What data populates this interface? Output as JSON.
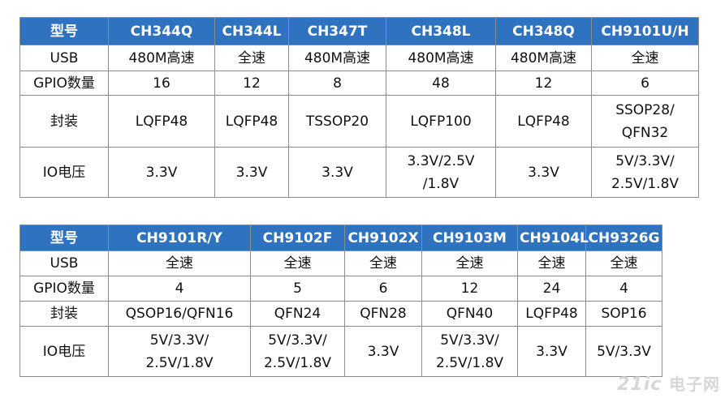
{
  "table1": {
    "header": [
      "型号",
      "CH344Q",
      "CH344L",
      "CH347T",
      "CH348L",
      "CH348Q",
      "CH9101U/H"
    ],
    "rows": [
      [
        "USB",
        "480M高速",
        "全速",
        "480M高速",
        "480M高速",
        "480M高速",
        "全速"
      ],
      [
        "GPIO数量",
        "16",
        "12",
        "8",
        "48",
        "12",
        "6"
      ],
      [
        "封装",
        "LQFP48",
        "LQFP48",
        "TSSOP20",
        "LQFP100",
        "LQFP48",
        "SSOP28/\nQFN32"
      ],
      [
        "IO电压",
        "3.3V",
        "3.3V",
        "3.3V",
        "3.3V/2.5V\n/1.8V",
        "3.3V",
        "5V/3.3V/\n2.5V/1.8V"
      ]
    ]
  },
  "table2": {
    "header": [
      "型号",
      "CH9101R/Y",
      "CH9102F",
      "CH9102X",
      "CH9103M",
      "CH9104L",
      "CH9326G"
    ],
    "rows": [
      [
        "USB",
        "全速",
        "全速",
        "全速",
        "全速",
        "全速",
        "全速"
      ],
      [
        "GPIO数量",
        "4",
        "5",
        "6",
        "12",
        "24",
        "4"
      ],
      [
        "封装",
        "QSOP16/QFN16",
        "QFN24",
        "QFN28",
        "QFN40",
        "LQFP48",
        "SOP16"
      ],
      [
        "IO电压",
        "5V/3.3V/\n2.5V/1.8V",
        "5V/3.3V/\n2.5V/1.8V",
        "3.3V",
        "5V/3.3V/\n2.5V/1.8V",
        "3.3V",
        "5V/3.3V"
      ]
    ]
  },
  "watermark": {
    "brand": "21ic",
    "cn": "电子网"
  },
  "colors": {
    "header_bg": "#2f72c0",
    "header_text": "#ffffff",
    "border": "#8c8c8c"
  }
}
